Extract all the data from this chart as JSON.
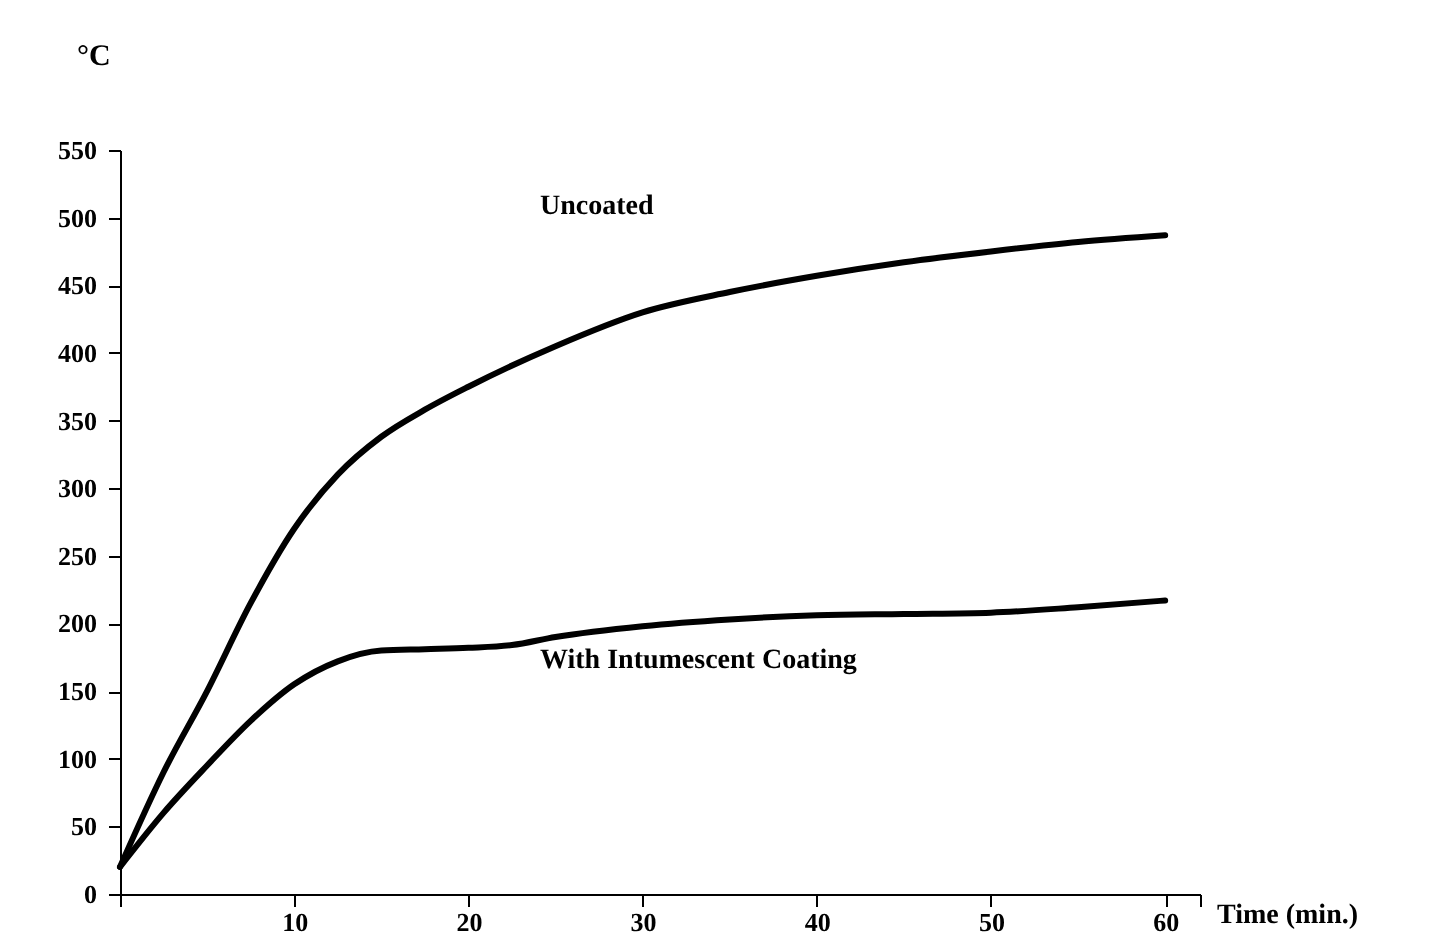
{
  "chart_data": {
    "type": "line",
    "xlabel": "Time (min.)",
    "ylabel": "°C",
    "xlim": [
      0,
      62
    ],
    "xticks": [
      {
        "value": 0,
        "label": null
      },
      10,
      20,
      30,
      40,
      50,
      60,
      {
        "value": 62,
        "label": null
      }
    ],
    "ylim": [
      0,
      550
    ],
    "yticks": [
      0,
      50,
      100,
      150,
      200,
      250,
      300,
      350,
      400,
      450,
      500,
      550
    ],
    "grid": false,
    "marker": "none",
    "line_style": "solid",
    "series": [
      {
        "color": "#000000",
        "x": [
          0,
          2.5,
          5,
          7.5,
          10,
          12.5,
          15,
          17.5,
          20,
          25,
          30,
          35,
          40,
          45,
          50,
          55,
          60
        ],
        "values": [
          20,
          90,
          150,
          215,
          270,
          310,
          338,
          358,
          375,
          405,
          430,
          445,
          457,
          467,
          475,
          482,
          487
        ]
      },
      {
        "color": "#000000",
        "x": [
          0,
          2.5,
          5,
          7.5,
          10,
          12.5,
          15,
          17.5,
          20,
          22.5,
          25,
          30,
          35,
          40,
          45,
          50,
          55,
          60
        ],
        "values": [
          20,
          60,
          95,
          128,
          155,
          172,
          180,
          181,
          182,
          184,
          190,
          198,
          203,
          206,
          207,
          208,
          212,
          217
        ]
      }
    ],
    "annotations": [
      "Uncoated",
      "With Intumescent Coating"
    ]
  }
}
